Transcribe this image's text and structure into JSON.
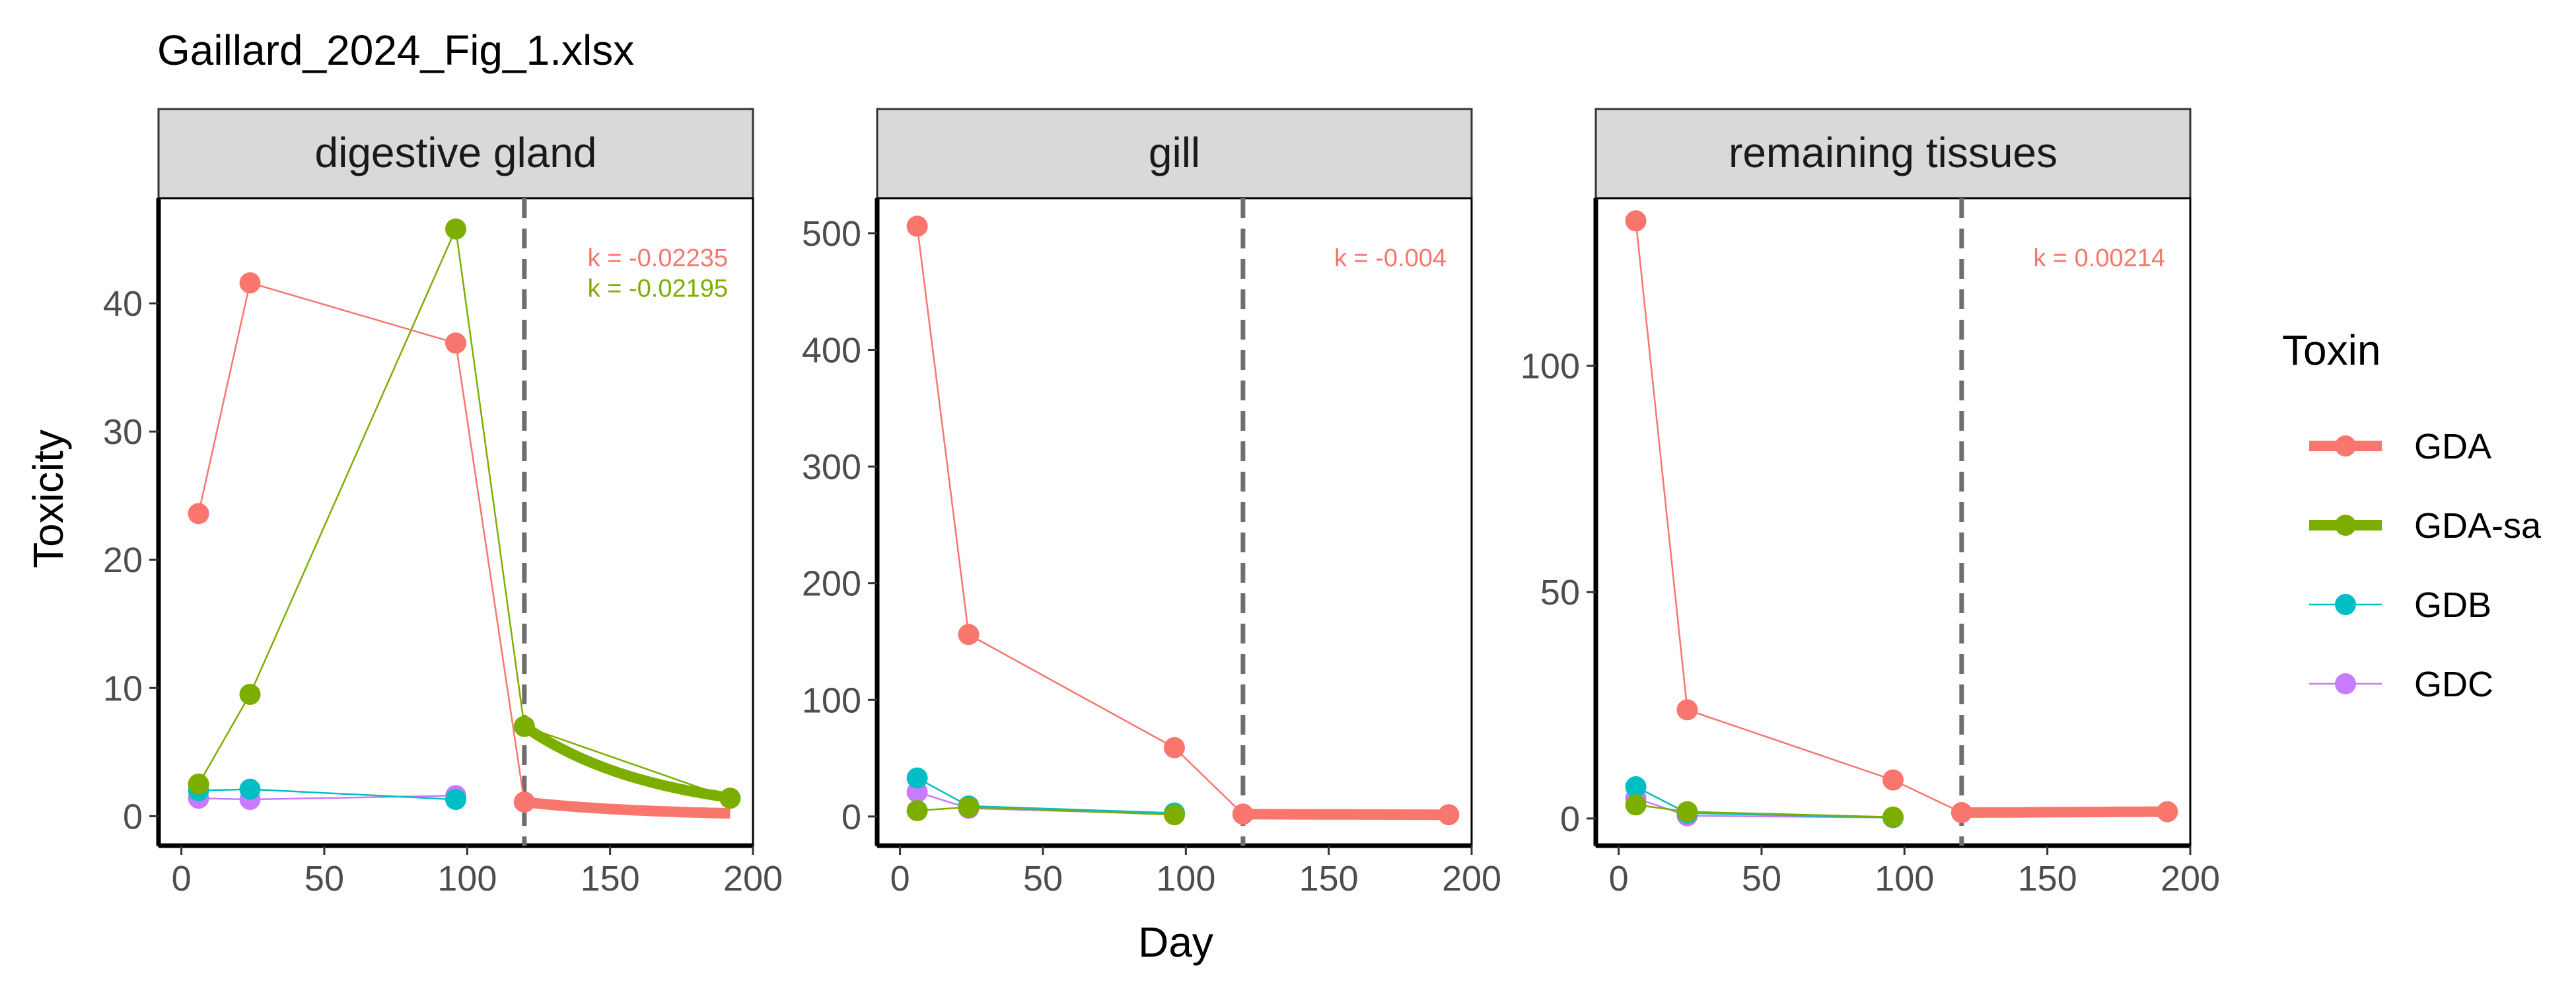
{
  "title": "Gaillard_2024_Fig_1.xlsx",
  "xlabel": "Day",
  "ylabel": "Toxicity",
  "legend": {
    "title": "Toxin",
    "items": [
      {
        "name": "GDA",
        "color": "#F8766D",
        "style": "thick"
      },
      {
        "name": "GDA-sa",
        "color": "#7CAE00",
        "style": "thick"
      },
      {
        "name": "GDB",
        "color": "#00BFC4",
        "style": "thin"
      },
      {
        "name": "GDC",
        "color": "#C77CFF",
        "style": "thin"
      }
    ]
  },
  "chart_data": [
    {
      "type": "line",
      "panel": "digestive gland",
      "xlim": [
        -8,
        200
      ],
      "ylim": [
        -2.3,
        48.2
      ],
      "xticks": [
        0,
        50,
        100,
        150,
        200
      ],
      "yticks": [
        0,
        10,
        20,
        30,
        40
      ],
      "vline_x": 120,
      "series": [
        {
          "name": "GDA",
          "x": [
            6,
            24,
            96,
            120
          ],
          "y": [
            23.6,
            41.6,
            36.9,
            1.1
          ]
        },
        {
          "name": "GDA-sa",
          "x": [
            6,
            24,
            96,
            120,
            192
          ],
          "y": [
            2.5,
            9.5,
            45.8,
            7.0,
            1.4
          ]
        },
        {
          "name": "GDB",
          "x": [
            6,
            24,
            96
          ],
          "y": [
            2.0,
            2.1,
            1.3
          ]
        },
        {
          "name": "GDC",
          "x": [
            6,
            24,
            96
          ],
          "y": [
            1.4,
            1.3,
            1.6
          ]
        }
      ],
      "fits": [
        {
          "name": "GDA",
          "x0": 120,
          "x1": 192,
          "y0": 1.1,
          "k": -0.02235
        },
        {
          "name": "GDA-sa",
          "x0": 120,
          "x1": 192,
          "y0": 7.0,
          "k": -0.02195
        }
      ],
      "k_labels": [
        {
          "text": "k = -0.02235",
          "series": "GDA"
        },
        {
          "text": "k = -0.02195",
          "series": "GDA-sa"
        }
      ]
    },
    {
      "type": "line",
      "panel": "gill",
      "xlim": [
        -8,
        200
      ],
      "ylim": [
        -25,
        530
      ],
      "xticks": [
        0,
        50,
        100,
        150,
        200
      ],
      "yticks": [
        0,
        100,
        200,
        300,
        400,
        500
      ],
      "vline_x": 120,
      "series": [
        {
          "name": "GDA",
          "x": [
            6,
            24,
            96,
            120,
            192
          ],
          "y": [
            506,
            156,
            59,
            2,
            1.5
          ]
        },
        {
          "name": "GDA-sa",
          "x": [
            6,
            24,
            96
          ],
          "y": [
            5,
            8,
            1.5
          ]
        },
        {
          "name": "GDB",
          "x": [
            6,
            24,
            96
          ],
          "y": [
            33,
            9,
            3
          ]
        },
        {
          "name": "GDC",
          "x": [
            6,
            24,
            96
          ],
          "y": [
            21,
            7,
            2
          ]
        }
      ],
      "fits": [
        {
          "name": "GDA",
          "x0": 120,
          "x1": 192,
          "y0": 2,
          "k": -0.004
        }
      ],
      "k_labels": [
        {
          "text": "k = -0.004",
          "series": "GDA"
        }
      ]
    },
    {
      "type": "line",
      "panel": "remaining tissues",
      "xlim": [
        -8,
        200
      ],
      "ylim": [
        -6,
        137
      ],
      "xticks": [
        0,
        50,
        100,
        150,
        200
      ],
      "yticks": [
        0,
        50,
        100
      ],
      "vline_x": 120,
      "series": [
        {
          "name": "GDA",
          "x": [
            6,
            24,
            96,
            120,
            192
          ],
          "y": [
            132,
            24,
            8.5,
            1.3,
            1.5
          ]
        },
        {
          "name": "GDA-sa",
          "x": [
            6,
            24,
            96
          ],
          "y": [
            3,
            1.5,
            0.3
          ]
        },
        {
          "name": "GDB",
          "x": [
            6,
            24,
            96
          ],
          "y": [
            7,
            1.2,
            0.2
          ]
        },
        {
          "name": "GDC",
          "x": [
            6,
            24,
            96
          ],
          "y": [
            4.5,
            0.6,
            0.2
          ]
        }
      ],
      "fits": [
        {
          "name": "GDA",
          "x0": 120,
          "x1": 192,
          "y0": 1.3,
          "k": 0.00214
        }
      ],
      "k_labels": [
        {
          "text": "k = 0.00214",
          "series": "GDA"
        }
      ]
    }
  ]
}
